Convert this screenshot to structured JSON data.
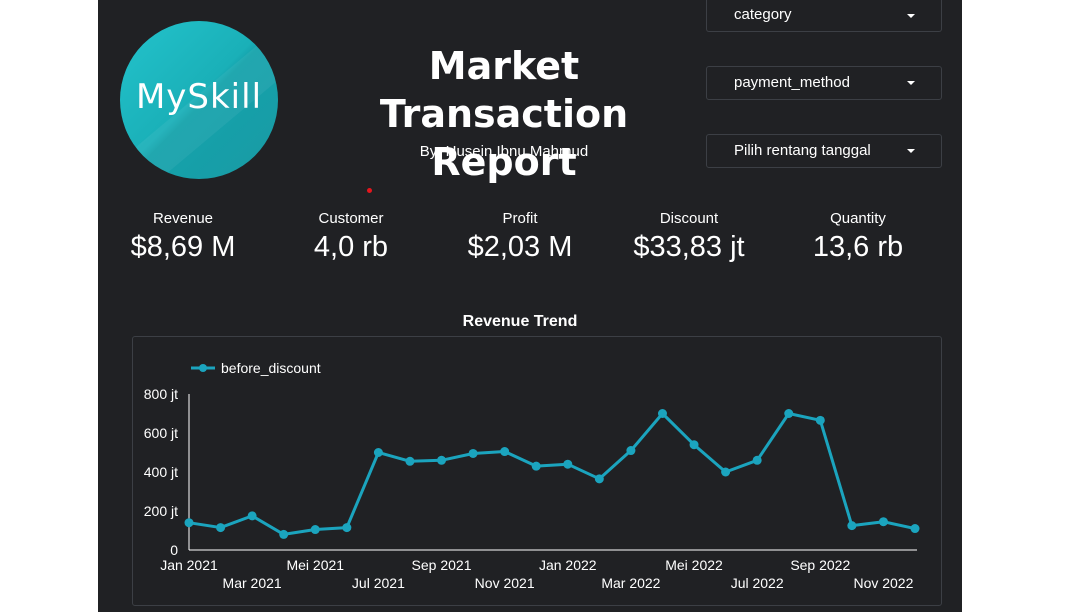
{
  "header": {
    "logo_text": "MySkill",
    "title_line1": "Market Transaction",
    "title_line2": "Report",
    "subtitle": "By: Husein Ibnu Mahmud"
  },
  "filters": [
    {
      "label": "category"
    },
    {
      "label": "payment_method"
    },
    {
      "label": "Pilih rentang tanggal"
    }
  ],
  "kpis": [
    {
      "label": "Revenue",
      "value": "$8,69 M"
    },
    {
      "label": "Customer",
      "value": "4,0 rb"
    },
    {
      "label": "Profit",
      "value": "$2,03 M"
    },
    {
      "label": "Discount",
      "value": "$33,83 jt"
    },
    {
      "label": "Quantity",
      "value": "13,6 rb"
    }
  ],
  "colors": {
    "background": "#202124",
    "series": "#1ba4be",
    "logo": "#1ab0b8"
  },
  "chart_data": {
    "type": "line",
    "title": "Revenue Trend",
    "legend_position": "top-left",
    "ylim": [
      0,
      800
    ],
    "y_ticks": [
      {
        "value": 0,
        "label": "0"
      },
      {
        "value": 200,
        "label": "200 jt"
      },
      {
        "value": 400,
        "label": "400 jt"
      },
      {
        "value": 600,
        "label": "600 jt"
      },
      {
        "value": 800,
        "label": "800 jt"
      }
    ],
    "x": [
      "2021-01",
      "2021-02",
      "2021-03",
      "2021-04",
      "2021-05",
      "2021-06",
      "2021-07",
      "2021-08",
      "2021-09",
      "2021-10",
      "2021-11",
      "2021-12",
      "2022-01",
      "2022-02",
      "2022-03",
      "2022-04",
      "2022-05",
      "2022-06",
      "2022-07",
      "2022-08",
      "2022-09",
      "2022-10",
      "2022-11",
      "2022-12"
    ],
    "x_tick_labels": [
      {
        "index": 0,
        "label": "Jan 2021",
        "row": 0
      },
      {
        "index": 2,
        "label": "Mar 2021",
        "row": 1
      },
      {
        "index": 4,
        "label": "Mei 2021",
        "row": 0
      },
      {
        "index": 6,
        "label": "Jul 2021",
        "row": 1
      },
      {
        "index": 8,
        "label": "Sep 2021",
        "row": 0
      },
      {
        "index": 10,
        "label": "Nov 2021",
        "row": 1
      },
      {
        "index": 12,
        "label": "Jan 2022",
        "row": 0
      },
      {
        "index": 14,
        "label": "Mar 2022",
        "row": 1
      },
      {
        "index": 16,
        "label": "Mei 2022",
        "row": 0
      },
      {
        "index": 18,
        "label": "Jul 2022",
        "row": 1
      },
      {
        "index": 20,
        "label": "Sep 2022",
        "row": 0
      },
      {
        "index": 22,
        "label": "Nov 2022",
        "row": 1
      }
    ],
    "series": [
      {
        "name": "before_discount",
        "values": [
          140,
          115,
          175,
          80,
          105,
          115,
          500,
          455,
          460,
          495,
          505,
          430,
          440,
          365,
          510,
          700,
          540,
          400,
          460,
          700,
          665,
          125,
          145,
          110
        ]
      }
    ]
  }
}
